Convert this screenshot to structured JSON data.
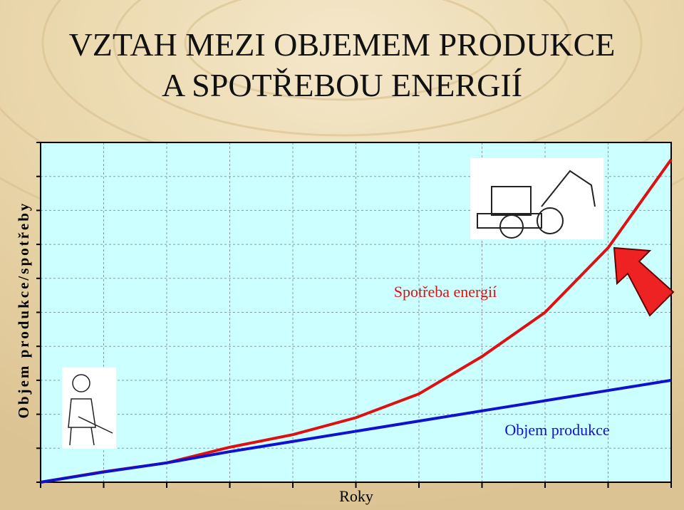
{
  "chart_data": {
    "type": "line",
    "title_lines": [
      "VZTAH MEZI OBJEMEM PRODUKCE",
      "A SPOTŘEBOU ENERGIÍ"
    ],
    "x_label": "Roky",
    "y_label": "Objem produkce/spotřeby",
    "x": [
      0,
      1,
      2,
      3,
      4,
      5,
      6,
      7,
      8,
      9,
      10
    ],
    "series": [
      {
        "name": "Spotřeba energií",
        "color": "#e01010",
        "values": [
          0,
          0.31,
          0.57,
          1.03,
          1.4,
          1.9,
          2.6,
          3.7,
          5.0,
          6.9,
          9.5
        ]
      },
      {
        "name": "Objem produkce",
        "color": "#1010d0",
        "values": [
          0,
          0.3,
          0.57,
          0.9,
          1.2,
          1.5,
          1.8,
          2.1,
          2.4,
          2.7,
          3.0
        ]
      }
    ],
    "xlim": [
      0,
      10
    ],
    "ylim": [
      0,
      10
    ],
    "xticks": [
      0,
      1,
      2,
      3,
      4,
      5,
      6,
      7,
      8,
      9,
      10
    ],
    "yticks": [
      0,
      1,
      2,
      3,
      4,
      5,
      6,
      7,
      8,
      9,
      10
    ],
    "grid": true
  }
}
